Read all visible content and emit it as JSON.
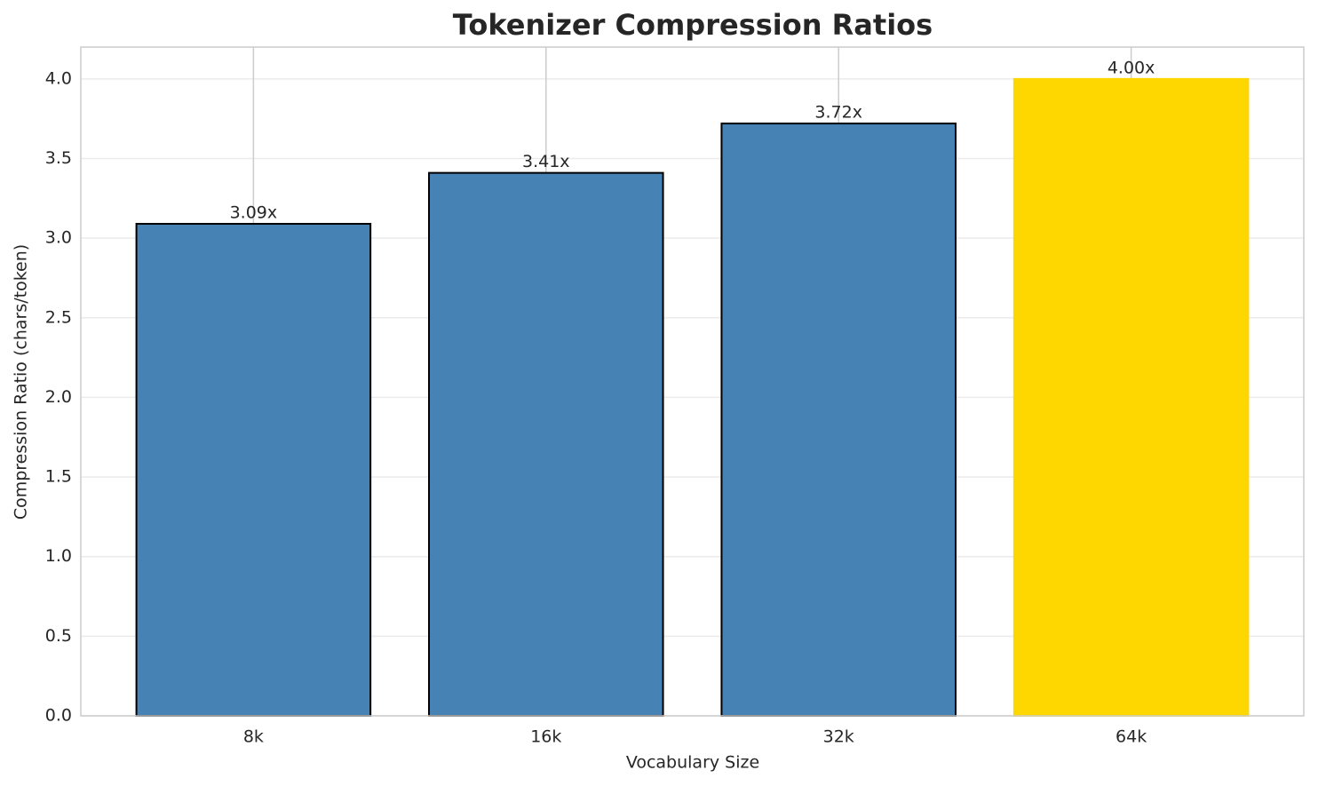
{
  "chart_data": {
    "type": "bar",
    "title": "Tokenizer Compression Ratios",
    "x_label": "Vocabulary Size",
    "y_label": "Compression Ratio (chars/token)",
    "categories": [
      "8k",
      "16k",
      "32k",
      "64k"
    ],
    "values": [
      3.09,
      3.41,
      3.72,
      4.0
    ],
    "value_labels": [
      "3.09x",
      "3.41x",
      "3.72x",
      "4.00x"
    ],
    "colors": [
      "#4682b4",
      "#4682b4",
      "#4682b4",
      "#ffd700"
    ],
    "edge_colors": [
      "#000000",
      "#000000",
      "#000000",
      "#ffd700"
    ],
    "ylim": [
      0,
      4.2
    ],
    "yticks": [
      {
        "value": 0,
        "label": "0.0"
      },
      0.5,
      {
        "value": 1,
        "label": "1.0"
      },
      1.5,
      {
        "value": 2,
        "label": "2.0"
      },
      2.5,
      {
        "value": 3,
        "label": "3.0"
      },
      3.5,
      {
        "value": 4,
        "label": "4.0"
      }
    ],
    "grid": true
  }
}
